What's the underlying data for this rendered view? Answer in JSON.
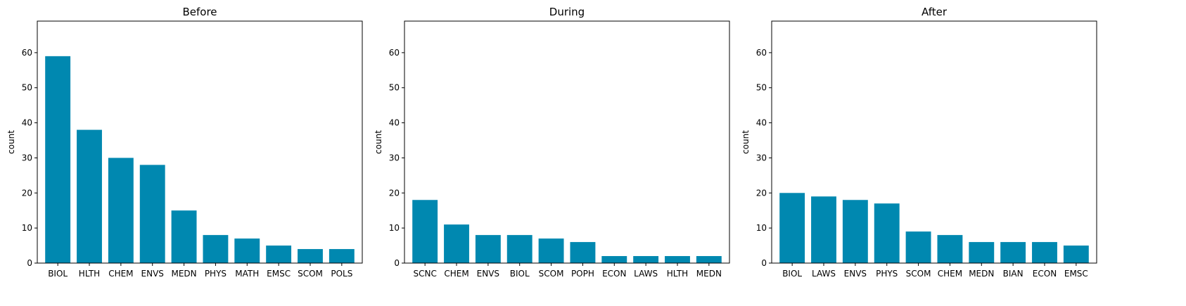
{
  "chart_data": [
    {
      "type": "bar",
      "title": "Before",
      "ylabel": "count",
      "ylim": [
        0,
        69
      ],
      "yticks": [
        0,
        10,
        20,
        30,
        40,
        50,
        60
      ],
      "bar_color": "#0088b0",
      "categories": [
        "BIOL",
        "HLTH",
        "CHEM",
        "ENVS",
        "MEDN",
        "PHYS",
        "MATH",
        "EMSC",
        "SCOM",
        "POLS"
      ],
      "values": [
        59,
        38,
        30,
        28,
        15,
        8,
        7,
        5,
        4,
        4
      ]
    },
    {
      "type": "bar",
      "title": "During",
      "ylabel": "count",
      "ylim": [
        0,
        69
      ],
      "yticks": [
        0,
        10,
        20,
        30,
        40,
        50,
        60
      ],
      "bar_color": "#0088b0",
      "categories": [
        "SCNC",
        "CHEM",
        "ENVS",
        "BIOL",
        "SCOM",
        "POPH",
        "ECON",
        "LAWS",
        "HLTH",
        "MEDN"
      ],
      "values": [
        18,
        11,
        8,
        8,
        7,
        6,
        2,
        2,
        2,
        2
      ]
    },
    {
      "type": "bar",
      "title": "After",
      "ylabel": "count",
      "ylim": [
        0,
        69
      ],
      "yticks": [
        0,
        10,
        20,
        30,
        40,
        50,
        60
      ],
      "bar_color": "#0088b0",
      "categories": [
        "BIOL",
        "LAWS",
        "ENVS",
        "PHYS",
        "SCOM",
        "CHEM",
        "MEDN",
        "BIAN",
        "ECON",
        "EMSC"
      ],
      "values": [
        20,
        19,
        18,
        17,
        9,
        8,
        6,
        6,
        6,
        5
      ]
    }
  ]
}
